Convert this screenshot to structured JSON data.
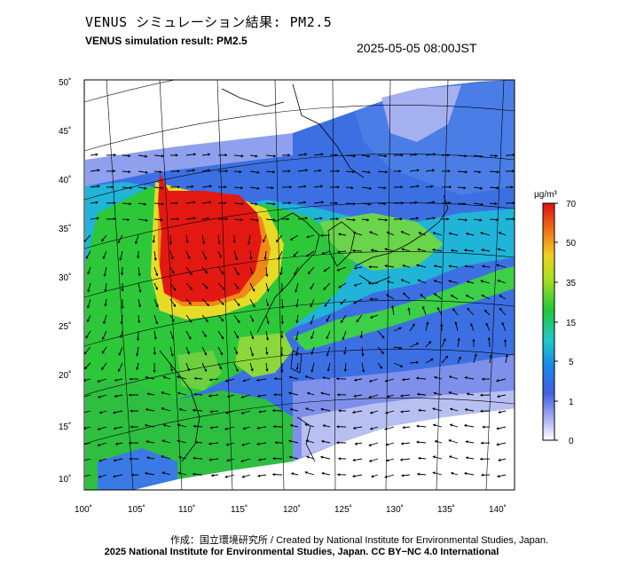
{
  "header": {
    "title_jp": "VENUS シミュレーション結果: PM2.5",
    "title_en": "VENUS simulation result: PM2.5",
    "timestamp": "2025-05-05 08:00JST"
  },
  "map": {
    "lat_labels": [
      "50˚",
      "45˚",
      "40˚",
      "35˚",
      "30˚",
      "25˚",
      "20˚",
      "15˚",
      "10˚"
    ],
    "lon_labels": [
      "100˚",
      "105˚",
      "110˚",
      "115˚",
      "120˚",
      "125˚",
      "130˚",
      "135˚",
      "140˚"
    ],
    "colors": {
      "ocean_blue": "#3a6fe0",
      "deep_blue": "#1c3bd1",
      "light_blue": "#9aa8f0",
      "cyan": "#22c8c8",
      "green": "#22c33a",
      "yellow": "#e8e02a",
      "orange": "#f08a16",
      "red": "#e81a12",
      "white": "#ffffff",
      "coastline": "#000000"
    }
  },
  "colorbar": {
    "unit": "µg/m³",
    "ticks": [
      "70",
      "50",
      "35",
      "15",
      "5",
      "1",
      "0"
    ]
  },
  "footer": {
    "credit_jp": "作成：国立環境研究所 / Created by National Institute for Environmental Studies, Japan.",
    "copyright": "2025 National Institute for Environmental Studies, Japan. CC BY−NC 4.0 International"
  }
}
